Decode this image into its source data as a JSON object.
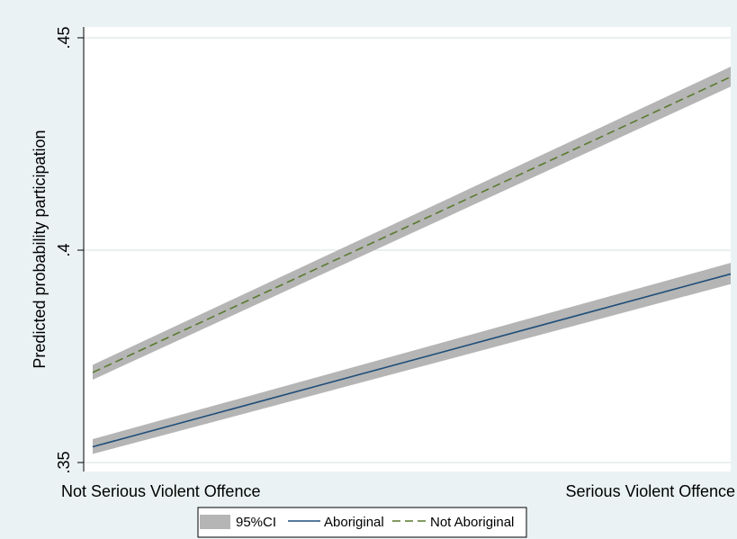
{
  "chart_data": {
    "type": "line",
    "title": "",
    "xlabel": "",
    "ylabel": "Predicted probability participation",
    "categories": [
      "Not Serious Violent Offence",
      "Serious Violent Offence"
    ],
    "ylim": [
      0.35,
      0.45
    ],
    "yticks": [
      {
        "value": 0.35,
        "label": ".35"
      },
      {
        "value": 0.4,
        "label": ".4"
      },
      {
        "value": 0.45,
        "label": ".45"
      }
    ],
    "grid": true,
    "legend_position": "bottom",
    "series": [
      {
        "name": "Aboriginal",
        "values": [
          0.3537,
          0.3944
        ],
        "ci_lower": [
          0.352,
          0.392
        ],
        "ci_upper": [
          0.3555,
          0.397
        ],
        "color": "#1f4e79",
        "dash": "solid"
      },
      {
        "name": "Not Aboriginal",
        "values": [
          0.3712,
          0.4408
        ],
        "ci_lower": [
          0.3695,
          0.4385
        ],
        "ci_upper": [
          0.373,
          0.4432
        ],
        "color": "#5a7a2e",
        "dash": "dashed"
      }
    ],
    "ci_label": "95%CI",
    "ci_color": "#b5b5b5"
  }
}
